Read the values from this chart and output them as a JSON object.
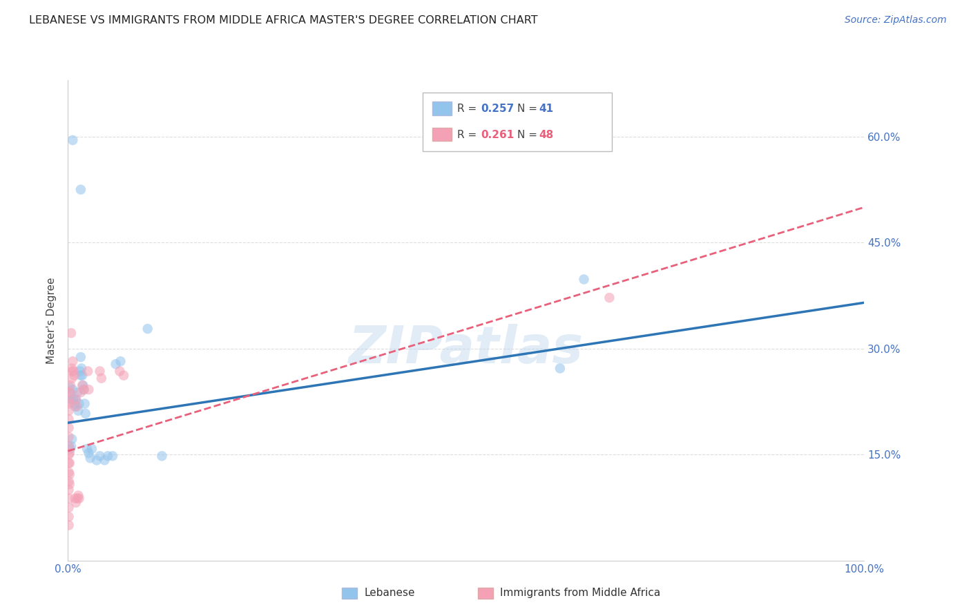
{
  "title": "LEBANESE VS IMMIGRANTS FROM MIDDLE AFRICA MASTER'S DEGREE CORRELATION CHART",
  "source": "Source: ZipAtlas.com",
  "ylabel": "Master's Degree",
  "xlim": [
    0,
    1.0
  ],
  "ylim": [
    0,
    0.68
  ],
  "x_ticks": [
    0.0,
    0.2,
    0.4,
    0.6,
    0.8,
    1.0
  ],
  "x_tick_labels": [
    "0.0%",
    "",
    "",
    "",
    "",
    "100.0%"
  ],
  "y_ticks": [
    0.15,
    0.3,
    0.45,
    0.6
  ],
  "y_tick_labels": [
    "15.0%",
    "30.0%",
    "45.0%",
    "60.0%"
  ],
  "color_blue": "#92C4EC",
  "color_pink": "#F4A0B5",
  "line_color_blue": "#2E75B6",
  "line_color_pink": "#E8607A",
  "blue_line_x": [
    0.0,
    1.0
  ],
  "blue_line_y": [
    0.195,
    0.365
  ],
  "pink_line_x": [
    0.0,
    1.0
  ],
  "pink_line_y": [
    0.155,
    0.5
  ],
  "blue_scatter": [
    [
      0.006,
      0.595
    ],
    [
      0.016,
      0.525
    ],
    [
      0.002,
      0.245
    ],
    [
      0.004,
      0.235
    ],
    [
      0.005,
      0.228
    ],
    [
      0.006,
      0.242
    ],
    [
      0.007,
      0.228
    ],
    [
      0.008,
      0.222
    ],
    [
      0.009,
      0.218
    ],
    [
      0.01,
      0.228
    ],
    [
      0.012,
      0.238
    ],
    [
      0.013,
      0.212
    ],
    [
      0.014,
      0.222
    ],
    [
      0.015,
      0.268
    ],
    [
      0.016,
      0.262
    ],
    [
      0.017,
      0.272
    ],
    [
      0.018,
      0.262
    ],
    [
      0.019,
      0.248
    ],
    [
      0.02,
      0.242
    ],
    [
      0.021,
      0.222
    ],
    [
      0.022,
      0.208
    ],
    [
      0.024,
      0.158
    ],
    [
      0.026,
      0.152
    ],
    [
      0.028,
      0.145
    ],
    [
      0.03,
      0.158
    ],
    [
      0.036,
      0.142
    ],
    [
      0.04,
      0.148
    ],
    [
      0.046,
      0.142
    ],
    [
      0.05,
      0.148
    ],
    [
      0.056,
      0.148
    ],
    [
      0.003,
      0.158
    ],
    [
      0.004,
      0.162
    ],
    [
      0.005,
      0.172
    ],
    [
      0.06,
      0.278
    ],
    [
      0.066,
      0.282
    ],
    [
      0.1,
      0.328
    ],
    [
      0.118,
      0.148
    ],
    [
      0.648,
      0.398
    ],
    [
      0.618,
      0.272
    ],
    [
      0.016,
      0.288
    ]
  ],
  "pink_scatter": [
    [
      0.001,
      0.05
    ],
    [
      0.001,
      0.062
    ],
    [
      0.001,
      0.075
    ],
    [
      0.001,
      0.088
    ],
    [
      0.001,
      0.1
    ],
    [
      0.001,
      0.112
    ],
    [
      0.001,
      0.125
    ],
    [
      0.001,
      0.138
    ],
    [
      0.001,
      0.15
    ],
    [
      0.001,
      0.162
    ],
    [
      0.001,
      0.175
    ],
    [
      0.001,
      0.188
    ],
    [
      0.001,
      0.2
    ],
    [
      0.001,
      0.212
    ],
    [
      0.001,
      0.225
    ],
    [
      0.001,
      0.238
    ],
    [
      0.002,
      0.108
    ],
    [
      0.002,
      0.122
    ],
    [
      0.002,
      0.138
    ],
    [
      0.002,
      0.152
    ],
    [
      0.002,
      0.222
    ],
    [
      0.003,
      0.248
    ],
    [
      0.003,
      0.238
    ],
    [
      0.005,
      0.268
    ],
    [
      0.005,
      0.258
    ],
    [
      0.005,
      0.272
    ],
    [
      0.006,
      0.282
    ],
    [
      0.007,
      0.268
    ],
    [
      0.008,
      0.262
    ],
    [
      0.01,
      0.228
    ],
    [
      0.011,
      0.218
    ],
    [
      0.012,
      0.088
    ],
    [
      0.013,
      0.092
    ],
    [
      0.014,
      0.088
    ],
    [
      0.016,
      0.238
    ],
    [
      0.018,
      0.248
    ],
    [
      0.02,
      0.242
    ],
    [
      0.025,
      0.268
    ],
    [
      0.026,
      0.242
    ],
    [
      0.04,
      0.268
    ],
    [
      0.042,
      0.258
    ],
    [
      0.065,
      0.268
    ],
    [
      0.07,
      0.262
    ],
    [
      0.004,
      0.322
    ],
    [
      0.68,
      0.372
    ],
    [
      0.009,
      0.088
    ],
    [
      0.01,
      0.082
    ]
  ]
}
